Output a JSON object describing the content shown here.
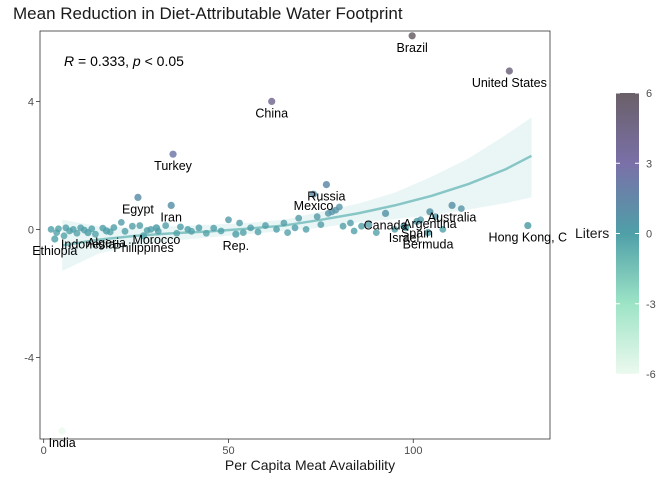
{
  "chart_data": {
    "type": "scatter",
    "title": "Mean Reduction in Diet-Attributable Water Footprint",
    "xlabel": "Per Capita Meat Availability",
    "ylabel": "",
    "xlim": [
      -1,
      137
    ],
    "ylim": [
      -6.55,
      6.2
    ],
    "xticks": [
      0,
      50,
      100
    ],
    "yticks": [
      -4,
      0,
      4
    ],
    "grid": false,
    "annotation": {
      "r_symbol": "R",
      "r_text": " = 0.333, ",
      "p_symbol": "p",
      "p_text": " < 0.05"
    },
    "legend": {
      "title": "Liters",
      "placement": "right",
      "ticks": [
        6,
        3,
        0,
        -3,
        -6
      ],
      "colors": [
        "#ecf9ee",
        "#9de4c6",
        "#4f9fa8",
        "#7a70a8",
        "#6a6068"
      ]
    },
    "trend": {
      "color": "#88c6c6",
      "x": [
        5,
        15,
        25,
        35,
        45,
        55,
        65,
        75,
        85,
        95,
        105,
        115,
        125,
        132
      ],
      "y": [
        -0.5,
        -0.32,
        -0.2,
        -0.12,
        -0.06,
        0.02,
        0.12,
        0.3,
        0.5,
        0.75,
        1.05,
        1.42,
        1.88,
        2.3
      ],
      "lower": [
        -1.3,
        -0.75,
        -0.5,
        -0.35,
        -0.25,
        -0.15,
        -0.05,
        0.05,
        0.22,
        0.32,
        0.45,
        0.62,
        0.82,
        1.0
      ],
      "upper": [
        0.3,
        0.1,
        0.05,
        0.1,
        0.15,
        0.2,
        0.3,
        0.55,
        0.8,
        1.15,
        1.65,
        2.22,
        2.95,
        3.5
      ]
    },
    "labeled_points": [
      {
        "label": "Brazil",
        "x": 99.7,
        "y": 6.05
      },
      {
        "label": "United States",
        "x": 126,
        "y": 4.95
      },
      {
        "label": "China",
        "x": 61.7,
        "y": 4.0
      },
      {
        "label": "Turkey",
        "x": 35,
        "y": 2.35
      },
      {
        "label": "Russia",
        "x": 76.5,
        "y": 1.4
      },
      {
        "label": "Egypt",
        "x": 25.5,
        "y": 1.0
      },
      {
        "label": "Mexico",
        "x": 73,
        "y": 1.1
      },
      {
        "label": "Iran",
        "x": 34.5,
        "y": 0.75
      },
      {
        "label": "Argentina",
        "x": 104.5,
        "y": 0.55
      },
      {
        "label": "Australia",
        "x": 110.5,
        "y": 0.75
      },
      {
        "label": "Morocco",
        "x": 30.5,
        "y": 0.05
      },
      {
        "label": "Canada",
        "x": 92.5,
        "y": 0.5
      },
      {
        "label": "Spain",
        "x": 101,
        "y": 0.25
      },
      {
        "label": "Israel",
        "x": 97.5,
        "y": 0.1
      },
      {
        "label": "Hong Kong, C",
        "x": 131,
        "y": 0.12
      },
      {
        "label": "Bermuda",
        "x": 104,
        "y": -0.1
      },
      {
        "label": "Algeria",
        "x": 17,
        "y": -0.05
      },
      {
        "label": "Philippines",
        "x": 27,
        "y": -0.2
      },
      {
        "label": "Indonesia",
        "x": 12,
        "y": -0.1
      },
      {
        "label": "India",
        "x": 5,
        "y": -6.3
      },
      {
        "label": "Ethiopia",
        "x": 3,
        "y": -0.3
      },
      {
        "label": "Rep.",
        "x": 52,
        "y": -0.15
      }
    ],
    "other_points": [
      {
        "x": 2,
        "y": 0.0
      },
      {
        "x": 3.5,
        "y": -0.1
      },
      {
        "x": 4,
        "y": 0.02
      },
      {
        "x": 5.5,
        "y": -0.2
      },
      {
        "x": 6,
        "y": 0.05
      },
      {
        "x": 7,
        "y": -0.05
      },
      {
        "x": 8,
        "y": 0.0
      },
      {
        "x": 9,
        "y": -0.12
      },
      {
        "x": 10,
        "y": 0.05
      },
      {
        "x": 11,
        "y": -0.02
      },
      {
        "x": 13,
        "y": 0.02
      },
      {
        "x": 14,
        "y": -0.15
      },
      {
        "x": 16,
        "y": 0.04
      },
      {
        "x": 18,
        "y": -0.08
      },
      {
        "x": 19,
        "y": 0.06
      },
      {
        "x": 21,
        "y": 0.22
      },
      {
        "x": 22,
        "y": -0.06
      },
      {
        "x": 24,
        "y": 0.1
      },
      {
        "x": 26,
        "y": 0.12
      },
      {
        "x": 28,
        "y": -0.03
      },
      {
        "x": 29,
        "y": 0.0
      },
      {
        "x": 31,
        "y": -0.06
      },
      {
        "x": 33,
        "y": 0.12
      },
      {
        "x": 36,
        "y": -0.12
      },
      {
        "x": 37,
        "y": 0.08
      },
      {
        "x": 39,
        "y": 0.0
      },
      {
        "x": 40,
        "y": -0.06
      },
      {
        "x": 42,
        "y": 0.05
      },
      {
        "x": 44,
        "y": -0.12
      },
      {
        "x": 46,
        "y": 0.04
      },
      {
        "x": 48,
        "y": -0.05
      },
      {
        "x": 50,
        "y": 0.3
      },
      {
        "x": 53,
        "y": 0.2
      },
      {
        "x": 54,
        "y": -0.1
      },
      {
        "x": 56,
        "y": 0.05
      },
      {
        "x": 58,
        "y": -0.08
      },
      {
        "x": 60,
        "y": 0.12
      },
      {
        "x": 63,
        "y": 0.0
      },
      {
        "x": 65,
        "y": 0.2
      },
      {
        "x": 66,
        "y": -0.1
      },
      {
        "x": 68,
        "y": 0.05
      },
      {
        "x": 69,
        "y": 0.35
      },
      {
        "x": 71,
        "y": 0.0
      },
      {
        "x": 74,
        "y": 0.4
      },
      {
        "x": 75,
        "y": 0.15
      },
      {
        "x": 77,
        "y": 0.5
      },
      {
        "x": 78,
        "y": 0.55
      },
      {
        "x": 79,
        "y": 0.6
      },
      {
        "x": 80,
        "y": 0.7
      },
      {
        "x": 81,
        "y": 0.1
      },
      {
        "x": 83,
        "y": 0.2
      },
      {
        "x": 84,
        "y": -0.05
      },
      {
        "x": 86,
        "y": 0.1
      },
      {
        "x": 88,
        "y": 0.15
      },
      {
        "x": 90,
        "y": -0.1
      },
      {
        "x": 95,
        "y": 0.0
      },
      {
        "x": 98,
        "y": 0.05
      },
      {
        "x": 102,
        "y": 0.3
      },
      {
        "x": 106,
        "y": 0.4
      },
      {
        "x": 108,
        "y": 0.0
      },
      {
        "x": 113,
        "y": 0.65
      }
    ]
  }
}
